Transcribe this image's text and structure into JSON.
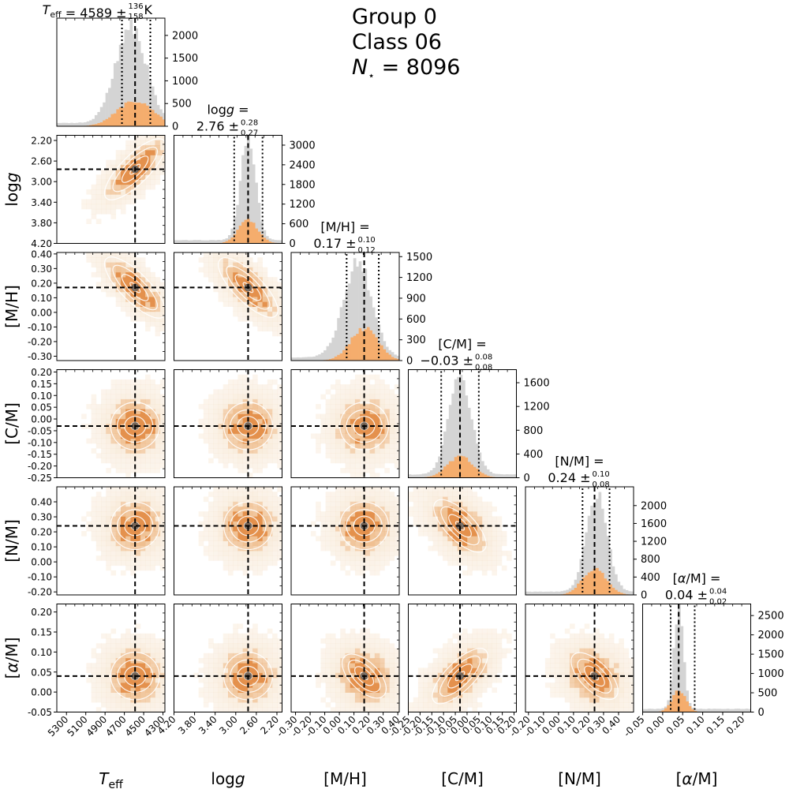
{
  "header": {
    "group": "Group 0",
    "class_label": "Class 06",
    "nstar_label": "N",
    "nstar_sub": "⋆",
    "nstar_value": "= 8096"
  },
  "colors": {
    "grey_hist": "#d4d4d4",
    "orange_hist": "#f5ad6d",
    "density_light": "#f6e3cc",
    "density_mid": "#efbe8e",
    "density_dark": "#e4914d",
    "center": "#5a5a5a",
    "contour": "#ffffff",
    "marker": "#000000"
  },
  "chart_data": {
    "type": "corner",
    "n_stars": 8096,
    "parameters": [
      {
        "key": "teff",
        "axis_label": "T_eff",
        "title_name": "T_eff",
        "title_unit": " K",
        "median": 4589,
        "plus": 136,
        "minus": 158,
        "median_text": "4589",
        "plus_text": "136",
        "minus_text": "158",
        "range": [
          5400,
          4280
        ],
        "ticks": [
          5300,
          5100,
          4900,
          4700,
          4500,
          4300
        ],
        "tick_decimals": 0,
        "dotted": [
          4431,
          4725
        ],
        "hist_ticks": [
          0,
          500,
          1000,
          1500,
          2000
        ]
      },
      {
        "key": "logg",
        "axis_label": "log g",
        "title_name": "log g",
        "title_unit": "",
        "median": 2.76,
        "plus": 0.28,
        "minus": 0.27,
        "median_text": "2.76",
        "plus_text": "0.28",
        "minus_text": "0.27",
        "range": [
          4.2,
          2.1
        ],
        "ticks": [
          4.2,
          3.8,
          3.4,
          3.0,
          2.6,
          2.2
        ],
        "tick_decimals": 2,
        "dotted": [
          2.48,
          3.03
        ],
        "hist_ticks": [
          0,
          600,
          1200,
          1800,
          2400,
          3000
        ]
      },
      {
        "key": "mh",
        "axis_label": "[M/H]",
        "title_name": "[M/H]",
        "title_unit": "",
        "median": 0.17,
        "plus": 0.1,
        "minus": 0.12,
        "median_text": "0.17",
        "plus_text": "0.10",
        "minus_text": "0.12",
        "range": [
          -0.33,
          0.41
        ],
        "ticks": [
          -0.3,
          -0.2,
          -0.1,
          0.0,
          0.1,
          0.2,
          0.3,
          0.4
        ],
        "tick_decimals": 2,
        "dotted": [
          0.05,
          0.27
        ],
        "hist_ticks": [
          0,
          300,
          600,
          900,
          1200,
          1500
        ]
      },
      {
        "key": "cm",
        "axis_label": "[C/M]",
        "title_name": "[C/M]",
        "title_unit": "",
        "median": -0.03,
        "plus": 0.08,
        "minus": 0.08,
        "median_text": "−0.03",
        "plus_text": "0.08",
        "minus_text": "0.08",
        "range": [
          -0.25,
          0.21
        ],
        "ticks": [
          -0.25,
          -0.2,
          -0.15,
          -0.1,
          -0.05,
          0.0,
          0.05,
          0.1,
          0.15,
          0.2
        ],
        "tick_decimals": 2,
        "dotted": [
          -0.11,
          0.05
        ],
        "hist_ticks": [
          0,
          400,
          800,
          1200,
          1600
        ]
      },
      {
        "key": "nm",
        "axis_label": "[N/M]",
        "title_name": "[N/M]",
        "title_unit": "",
        "median": 0.24,
        "plus": 0.1,
        "minus": 0.08,
        "median_text": "0.24",
        "plus_text": "0.10",
        "minus_text": "0.08",
        "range": [
          -0.22,
          0.5
        ],
        "ticks": [
          -0.2,
          -0.1,
          0.0,
          0.1,
          0.2,
          0.3,
          0.4
        ],
        "tick_decimals": 2,
        "dotted": [
          0.16,
          0.34
        ],
        "hist_ticks": [
          0,
          400,
          800,
          1200,
          1600,
          2000
        ]
      },
      {
        "key": "am",
        "axis_label": "[α/M]",
        "title_name": "[α/M]",
        "title_unit": "",
        "median": 0.04,
        "plus": 0.04,
        "minus": 0.02,
        "median_text": "0.04",
        "plus_text": "0.04",
        "minus_text": "0.02",
        "range": [
          -0.05,
          0.22
        ],
        "ticks": [
          -0.05,
          0.0,
          0.05,
          0.1,
          0.15,
          0.2
        ],
        "tick_decimals": 2,
        "dotted": [
          0.02,
          0.08
        ],
        "hist_ticks": [
          0,
          500,
          1000,
          1500,
          2000,
          2500
        ]
      }
    ],
    "diag_y_max": [
      2380,
      3300,
      1560,
      1820,
      2420,
      2800
    ],
    "diag_peak_grey": [
      2160,
      3080,
      1380,
      1640,
      2200,
      2550
    ],
    "diag_peak_orange": [
      560,
      700,
      460,
      360,
      600,
      550
    ],
    "diag_width_grey": [
      0.32,
      0.16,
      0.3,
      0.24,
      0.22,
      0.1
    ],
    "diag_width_orange": [
      0.36,
      0.2,
      0.28,
      0.26,
      0.24,
      0.14
    ],
    "diag_center_shift": [
      -0.04,
      0.0,
      -0.06,
      0.0,
      0.02,
      0.0
    ],
    "pair_correlation": {
      "1-0": 0.75,
      "2-0": -0.75,
      "2-1": -0.7,
      "3-0": 0.0,
      "3-1": 0.0,
      "3-2": 0.0,
      "4-0": 0.0,
      "4-1": 0.0,
      "4-2": 0.0,
      "4-3": -0.45,
      "5-0": 0.0,
      "5-1": 0.0,
      "5-2": -0.15,
      "5-3": 0.55,
      "5-4": -0.25
    }
  }
}
